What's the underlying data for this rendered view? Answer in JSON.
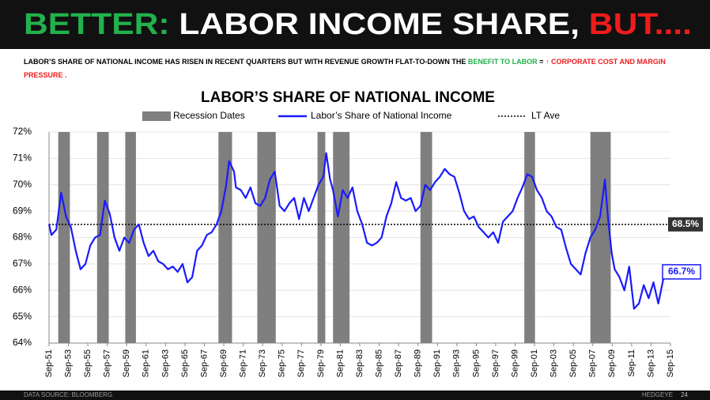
{
  "header": {
    "title_parts": [
      {
        "text": "BETTER:",
        "color": "#22b14c"
      },
      {
        "text": " LABOR INCOME SHARE, ",
        "color": "#ffffff"
      },
      {
        "text": "BUT....",
        "color": "#ee1c1c"
      }
    ],
    "subtitle_parts": [
      {
        "text": "LABOR’S SHARE OF NATIONAL INCOME HAS RISEN IN RECENT QUARTERS BUT WITH REVENUE GROWTH FLAT-TO-DOWN THE ",
        "color": "#000000"
      },
      {
        "text": "BENEFIT TO LABOR",
        "color": "#22b14c"
      },
      {
        "text": " = ",
        "color": "#000000"
      },
      {
        "text": "↑ CORPORATE COST AND MARGIN PRESSURE .",
        "color": "#ee1c1c"
      }
    ]
  },
  "chart_data": {
    "type": "line",
    "title": "LABOR’S SHARE OF NATIONAL INCOME",
    "recessions": {
      "name": "Recession Dates",
      "color": "#7f7f7f",
      "ranges": [
        [
          1952.7,
          1953.9
        ],
        [
          1956.7,
          1957.9
        ],
        [
          1959.6,
          1960.7
        ],
        [
          1969.2,
          1970.6
        ],
        [
          1973.2,
          1975.1
        ],
        [
          1979.4,
          1980.2
        ],
        [
          1981.0,
          1982.7
        ],
        [
          1990.0,
          1991.2
        ],
        [
          2000.7,
          2001.8
        ],
        [
          2007.5,
          2009.6
        ]
      ]
    },
    "x": [
      1951.75,
      1952,
      1952.5,
      1953,
      1953.5,
      1954,
      1954.5,
      1955,
      1955.5,
      1956,
      1956.5,
      1957,
      1957.5,
      1958,
      1958.5,
      1959,
      1959.5,
      1960,
      1960.5,
      1961,
      1961.5,
      1962,
      1962.5,
      1963,
      1963.5,
      1964,
      1964.5,
      1965,
      1965.5,
      1966,
      1966.5,
      1967,
      1967.5,
      1968,
      1968.5,
      1969,
      1969.5,
      1970,
      1970.3,
      1970.8,
      1971,
      1971.5,
      1972,
      1972.5,
      1973,
      1973.5,
      1974,
      1974.5,
      1975,
      1975.5,
      1976,
      1976.5,
      1977,
      1977.5,
      1978,
      1978.5,
      1979,
      1979.5,
      1980,
      1980.3,
      1980.7,
      1981,
      1981.5,
      1982,
      1982.5,
      1983,
      1983.5,
      1984,
      1984.5,
      1985,
      1985.5,
      1986,
      1986.5,
      1987,
      1987.5,
      1988,
      1988.5,
      1989,
      1989.5,
      1990,
      1990.5,
      1991,
      1991.5,
      1992,
      1992.5,
      1993,
      1993.5,
      1994,
      1994.5,
      1995,
      1995.5,
      1996,
      1996.5,
      1997,
      1997.5,
      1998,
      1998.5,
      1999,
      1999.5,
      2000,
      2000.5,
      2001,
      2001.5,
      2002,
      2002.5,
      2003,
      2003.5,
      2004,
      2004.5,
      2005,
      2005.5,
      2006,
      2006.5,
      2007,
      2007.5,
      2008,
      2008.5,
      2009,
      2009.3,
      2009.7,
      2010,
      2010.5,
      2011,
      2011.5,
      2012,
      2012.5,
      2013,
      2013.5,
      2014,
      2014.5,
      2015,
      2015.5
    ],
    "series": [
      {
        "name": "Labor’s Share of National Income",
        "color": "#1a1aff",
        "values": [
          68.5,
          68.1,
          68.3,
          69.7,
          68.8,
          68.4,
          67.5,
          66.8,
          67.0,
          67.7,
          68.0,
          68.1,
          69.4,
          68.9,
          68.0,
          67.5,
          68.0,
          67.8,
          68.3,
          68.5,
          67.8,
          67.3,
          67.5,
          67.1,
          67.0,
          66.8,
          66.9,
          66.7,
          67.0,
          66.3,
          66.5,
          67.5,
          67.7,
          68.1,
          68.2,
          68.5,
          69.0,
          70.0,
          70.9,
          70.5,
          69.9,
          69.8,
          69.5,
          69.9,
          69.3,
          69.2,
          69.5,
          70.2,
          70.5,
          69.2,
          69.0,
          69.3,
          69.5,
          68.7,
          69.5,
          69.0,
          69.5,
          70.0,
          70.3,
          71.2,
          70.2,
          69.8,
          68.8,
          69.8,
          69.5,
          69.9,
          69.0,
          68.5,
          67.8,
          67.7,
          67.8,
          68.0,
          68.8,
          69.3,
          70.1,
          69.5,
          69.4,
          69.5,
          69.0,
          69.2,
          70.0,
          69.8,
          70.1,
          70.3,
          70.6,
          70.4,
          70.3,
          69.7,
          69.0,
          68.7,
          68.8,
          68.4,
          68.2,
          68.0,
          68.2,
          67.8,
          68.6,
          68.8,
          69.0,
          69.5,
          69.9,
          70.4,
          70.3,
          69.8,
          69.5,
          69.0,
          68.8,
          68.4,
          68.3,
          67.6,
          67.0,
          66.8,
          66.6,
          67.4,
          68.0,
          68.3,
          68.8,
          70.2,
          68.8,
          67.4,
          66.8,
          66.5,
          66.0,
          66.9,
          65.3,
          65.5,
          66.2,
          65.7,
          66.3,
          65.5,
          66.4,
          66.7
        ],
        "end_label": "66.7%"
      }
    ],
    "reference_line": {
      "name": "LT Ave",
      "value": 68.5,
      "label": "68.5%",
      "color": "#000000"
    },
    "xlim": [
      1951.75,
      2015.75
    ],
    "xticks": [
      {
        "value": 1951.75,
        "label": "Sep-51"
      },
      {
        "value": 1953.75,
        "label": "Sep-53"
      },
      {
        "value": 1955.75,
        "label": "Sep-55"
      },
      {
        "value": 1957.75,
        "label": "Sep-57"
      },
      {
        "value": 1959.75,
        "label": "Sep-59"
      },
      {
        "value": 1961.75,
        "label": "Sep-61"
      },
      {
        "value": 1963.75,
        "label": "Sep-63"
      },
      {
        "value": 1965.75,
        "label": "Sep-65"
      },
      {
        "value": 1967.75,
        "label": "Sep-67"
      },
      {
        "value": 1969.75,
        "label": "Sep-69"
      },
      {
        "value": 1971.75,
        "label": "Sep-71"
      },
      {
        "value": 1973.75,
        "label": "Sep-73"
      },
      {
        "value": 1975.75,
        "label": "Sep-75"
      },
      {
        "value": 1977.75,
        "label": "Sep-77"
      },
      {
        "value": 1979.75,
        "label": "Sep-79"
      },
      {
        "value": 1981.75,
        "label": "Sep-81"
      },
      {
        "value": 1983.75,
        "label": "Sep-83"
      },
      {
        "value": 1985.75,
        "label": "Sep-85"
      },
      {
        "value": 1987.75,
        "label": "Sep-87"
      },
      {
        "value": 1989.75,
        "label": "Sep-89"
      },
      {
        "value": 1991.75,
        "label": "Sep-91"
      },
      {
        "value": 1993.75,
        "label": "Sep-93"
      },
      {
        "value": 1995.75,
        "label": "Sep-95"
      },
      {
        "value": 1997.75,
        "label": "Sep-97"
      },
      {
        "value": 1999.75,
        "label": "Sep-99"
      },
      {
        "value": 2001.75,
        "label": "Sep-01"
      },
      {
        "value": 2003.75,
        "label": "Sep-03"
      },
      {
        "value": 2005.75,
        "label": "Sep-05"
      },
      {
        "value": 2007.75,
        "label": "Sep-07"
      },
      {
        "value": 2009.75,
        "label": "Sep-09"
      },
      {
        "value": 2011.75,
        "label": "Sep-11"
      },
      {
        "value": 2013.75,
        "label": "Sep-13"
      },
      {
        "value": 2015.75,
        "label": "Sep-15"
      }
    ],
    "ylim": [
      64,
      72
    ],
    "yticks": [
      {
        "value": 64,
        "label": "64%"
      },
      {
        "value": 65,
        "label": "65%"
      },
      {
        "value": 66,
        "label": "66%"
      },
      {
        "value": 67,
        "label": "67%"
      },
      {
        "value": 68,
        "label": "68%"
      },
      {
        "value": 69,
        "label": "69%"
      },
      {
        "value": 70,
        "label": "70%"
      },
      {
        "value": 71,
        "label": "71%"
      },
      {
        "value": 72,
        "label": "72%"
      }
    ],
    "grid": true
  },
  "footer": {
    "source": "DATA SOURCE: BLOOMBERG",
    "brand": "HEDGEYE",
    "page": "24"
  }
}
